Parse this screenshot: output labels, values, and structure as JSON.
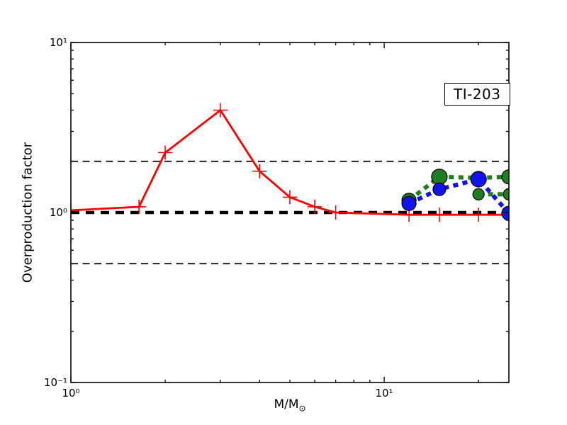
{
  "figure": {
    "background": "#ffffff"
  },
  "annotation": {
    "label": "TI-203"
  },
  "axes": {
    "ylabel": "Overproduction factor",
    "xlabel_main": "M/M",
    "xlabel_sub": "⊙",
    "x_ticklabels": [
      {
        "text": "10⁰",
        "value": 1
      },
      {
        "text": "10¹",
        "value": 10
      }
    ],
    "y_ticklabels": [
      {
        "text": "10¹",
        "value": 10
      },
      {
        "text": "10⁰",
        "value": 1
      },
      {
        "text": "10⁻¹",
        "value": 0.1
      }
    ]
  },
  "chart_data": {
    "type": "line",
    "title": "TI-203",
    "xlabel": "M/M⊙",
    "ylabel": "Overproduction factor",
    "xscale": "log",
    "yscale": "log",
    "xlim": [
      1,
      25
    ],
    "ylim": [
      0.1,
      10
    ],
    "grid": false,
    "legend": "none",
    "x_minor_ticks": [
      2,
      3,
      4,
      5,
      6,
      7,
      8,
      9,
      20
    ],
    "x_major_ticks": [
      1,
      10
    ],
    "y_minor_ticks": [
      0.2,
      0.3,
      0.4,
      0.5,
      0.6,
      0.7,
      0.8,
      0.9,
      2,
      3,
      4,
      5,
      6,
      7,
      8,
      9
    ],
    "y_major_ticks": [
      0.1,
      1,
      10
    ],
    "reference_lines": [
      {
        "y": 2,
        "color": "#000000",
        "style": "dashed",
        "weight": "thin"
      },
      {
        "y": 1,
        "color": "#000000",
        "style": "dashed",
        "weight": "thick"
      },
      {
        "y": 0.5,
        "color": "#000000",
        "style": "dashed",
        "weight": "thin"
      }
    ],
    "series": [
      {
        "name": "low-mass-models-red",
        "color": "#ff0000",
        "line": "solid",
        "marker": "plus",
        "x": [
          1,
          1.65,
          2,
          3,
          4,
          5,
          6,
          7,
          12,
          15,
          20,
          25
        ],
        "y": [
          1.03,
          1.08,
          2.25,
          4.0,
          1.75,
          1.23,
          1.08,
          1.0,
          0.97,
          0.97,
          0.97,
          0.97
        ]
      },
      {
        "name": "massive-models-green-upper",
        "color": "#1e7d1e",
        "line": "dashed-thick",
        "marker": "circle",
        "x": [
          12,
          15,
          20,
          25
        ],
        "y": [
          1.18,
          1.62,
          1.6,
          1.62
        ],
        "marker_r": [
          10,
          11,
          9,
          10
        ]
      },
      {
        "name": "massive-models-green-lower",
        "color": "#1e7d1e",
        "line": "dashed-thick",
        "marker": "circle",
        "x": [
          20,
          25
        ],
        "y": [
          1.28,
          1.28
        ],
        "marker_r": [
          8,
          8
        ]
      },
      {
        "name": "massive-models-blue",
        "color": "#1212ea",
        "line": "dashed-thick",
        "marker": "circle",
        "x": [
          12,
          15,
          20,
          25
        ],
        "y": [
          1.13,
          1.37,
          1.57,
          0.99
        ],
        "marker_r": [
          10,
          9,
          11,
          10
        ]
      }
    ]
  }
}
